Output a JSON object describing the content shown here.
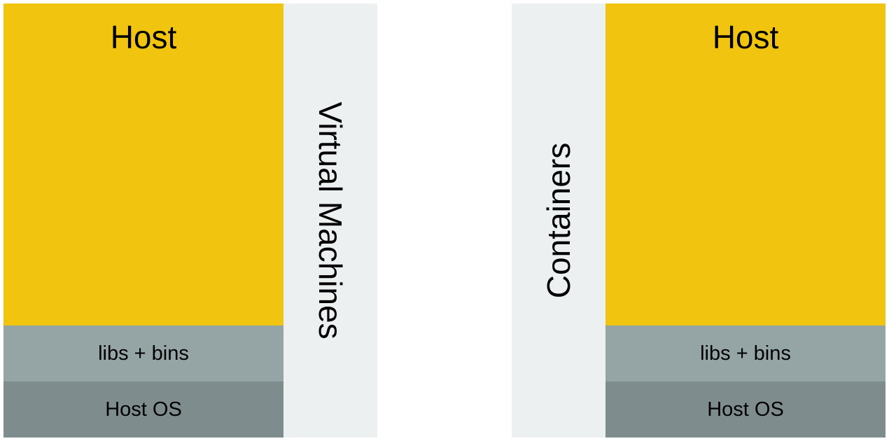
{
  "left_stack": {
    "host_label": "Host",
    "libs_label": "libs + bins",
    "os_label": "Host OS",
    "side_label": "Virtual Machines"
  },
  "right_stack": {
    "host_label": "Host",
    "libs_label": "libs + bins",
    "os_label": "Host OS",
    "side_label": "Containers"
  },
  "colors": {
    "host": "#f1c40f",
    "libs": "#95a5a6",
    "os": "#7f8c8d",
    "strip": "#ecf0f1"
  }
}
